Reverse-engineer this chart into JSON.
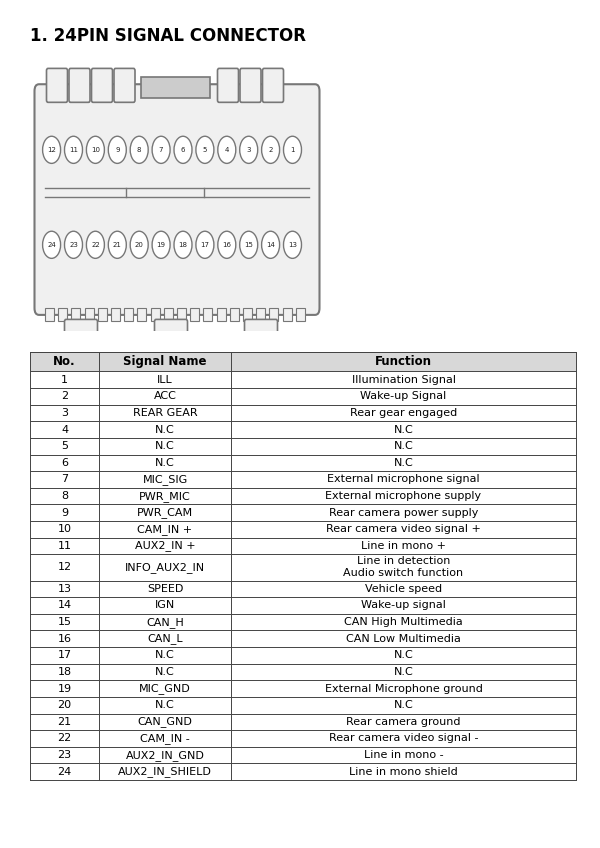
{
  "title": "1. 24PIN SIGNAL CONNECTOR",
  "bg_color": "#ffffff",
  "table_headers": [
    "No.",
    "Signal Name",
    "Function"
  ],
  "rows": [
    [
      "1",
      "ILL",
      "Illumination Signal"
    ],
    [
      "2",
      "ACC",
      "Wake-up Signal"
    ],
    [
      "3",
      "REAR GEAR",
      "Rear gear engaged"
    ],
    [
      "4",
      "N.C",
      "N.C"
    ],
    [
      "5",
      "N.C",
      "N.C"
    ],
    [
      "6",
      "N.C",
      "N.C"
    ],
    [
      "7",
      "MIC_SIG",
      "External microphone signal"
    ],
    [
      "8",
      "PWR_MIC",
      "External microphone supply"
    ],
    [
      "9",
      "PWR_CAM",
      "Rear camera power supply"
    ],
    [
      "10",
      "CAM_IN +",
      "Rear camera video signal +"
    ],
    [
      "11",
      "AUX2_IN +",
      "Line in mono +"
    ],
    [
      "12",
      "INFO_AUX2_IN",
      "Line in detection\nAudio switch function"
    ],
    [
      "13",
      "SPEED",
      "Vehicle speed"
    ],
    [
      "14",
      "IGN",
      "Wake-up signal"
    ],
    [
      "15",
      "CAN_H",
      "CAN High Multimedia"
    ],
    [
      "16",
      "CAN_L",
      "CAN Low Multimedia"
    ],
    [
      "17",
      "N.C",
      "N.C"
    ],
    [
      "18",
      "N.C",
      "N.C"
    ],
    [
      "19",
      "MIC_GND",
      "External Microphone ground"
    ],
    [
      "20",
      "N.C",
      "N.C"
    ],
    [
      "21",
      "CAN_GND",
      "Rear camera ground"
    ],
    [
      "22",
      "CAM_IN -",
      "Rear camera video signal -"
    ],
    [
      "23",
      "AUX2_IN_GND",
      "Line in mono -"
    ],
    [
      "24",
      "AUX2_IN_SHIELD",
      "Line in mono shield"
    ]
  ],
  "header_bg": "#d8d8d8",
  "line_color": "#444444",
  "text_color": "#000000",
  "title_fontsize": 12,
  "header_fontsize": 8.5,
  "cell_fontsize": 8.0,
  "connector_color": "#777777",
  "connector_fill": "#f0f0f0"
}
